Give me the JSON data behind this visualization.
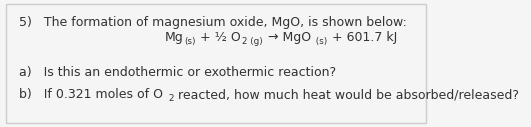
{
  "background_color": "#f5f5f5",
  "border_color": "#cccccc",
  "title_line": "5)   The formation of magnesium oxide, MgO, is shown below:",
  "equation_parts": {
    "main": "Mg",
    "sub1": "(s)",
    "plus_half": " + ½ O",
    "sub2": "2 (g)",
    "arrow": " → MgO",
    "sub3": " (s)",
    "energy": " + 601.7 kJ"
  },
  "line_a": "a)   Is this an endothermic or exothermic reaction?",
  "line_b_start": "b)   If 0.321 moles of O",
  "line_b_sub": "2",
  "line_b_end": " reacted, how much heat would be absorbed/released?",
  "font_size": 9,
  "text_color": "#333333"
}
